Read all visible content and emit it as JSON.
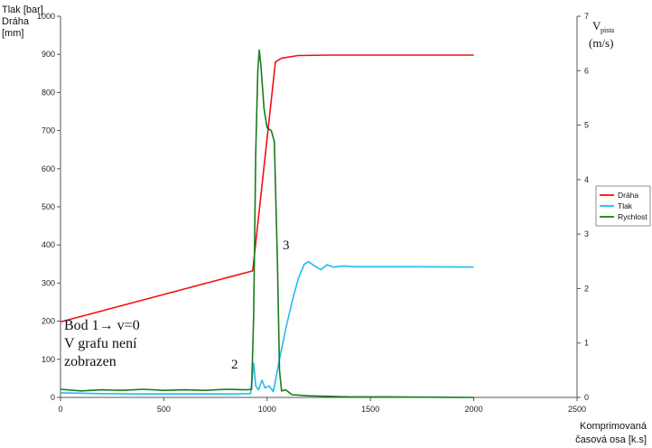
{
  "chart_data": {
    "type": "line",
    "left_axis": {
      "label_lines": [
        "Tlak [bar]",
        "Dráha",
        "[mm]"
      ],
      "ylim": [
        0,
        1000
      ],
      "ticks": [
        "0",
        "100",
        "200",
        "300",
        "400",
        "500",
        "600",
        "700",
        "800",
        "900",
        "1000"
      ]
    },
    "right_axis": {
      "label_main": "V",
      "label_sub": "pista",
      "label_unit": "(m/s)",
      "ylim": [
        0,
        7
      ],
      "ticks": [
        "0",
        "1",
        "2",
        "3",
        "4",
        "5",
        "6",
        "7"
      ]
    },
    "x_axis": {
      "label_lines": [
        "Komprimovaná",
        "časová osa [k.s]"
      ],
      "xlim": [
        0,
        2500
      ],
      "ticks": [
        "0",
        "500",
        "1000",
        "1500",
        "2000",
        "2500"
      ]
    },
    "legend": {
      "placement": "right",
      "entries": [
        "Dráha",
        "Tlak",
        "Rychlost"
      ]
    },
    "annotations": {
      "note_lines": [
        "Bod 1→ v=0",
        "V grafu není",
        "zobrazen"
      ],
      "marker2": "2",
      "marker3": "3"
    },
    "series": [
      {
        "name": "Dráha",
        "axis": "left",
        "color": "#ee1111",
        "points": [
          [
            0,
            198
          ],
          [
            930,
            332
          ],
          [
            1040,
            880
          ],
          [
            1070,
            890
          ],
          [
            1150,
            897
          ],
          [
            1300,
            898
          ],
          [
            1600,
            898
          ],
          [
            2000,
            898
          ]
        ]
      },
      {
        "name": "Tlak",
        "axis": "left",
        "color": "#22bbee",
        "points": [
          [
            0,
            12
          ],
          [
            200,
            10
          ],
          [
            400,
            9
          ],
          [
            600,
            9
          ],
          [
            800,
            9
          ],
          [
            920,
            10
          ],
          [
            935,
            90
          ],
          [
            945,
            30
          ],
          [
            958,
            20
          ],
          [
            975,
            45
          ],
          [
            990,
            25
          ],
          [
            1010,
            30
          ],
          [
            1030,
            15
          ],
          [
            1060,
            100
          ],
          [
            1090,
            180
          ],
          [
            1120,
            250
          ],
          [
            1150,
            310
          ],
          [
            1180,
            350
          ],
          [
            1200,
            356
          ],
          [
            1230,
            345
          ],
          [
            1260,
            335
          ],
          [
            1290,
            348
          ],
          [
            1320,
            342
          ],
          [
            1370,
            345
          ],
          [
            1420,
            343
          ],
          [
            1500,
            343
          ],
          [
            1700,
            343
          ],
          [
            2000,
            342
          ]
        ]
      },
      {
        "name": "Rychlost",
        "axis": "right",
        "color": "#1a7a1a",
        "points": [
          [
            0,
            0.15
          ],
          [
            100,
            0.12
          ],
          [
            200,
            0.14
          ],
          [
            300,
            0.13
          ],
          [
            400,
            0.15
          ],
          [
            500,
            0.13
          ],
          [
            600,
            0.14
          ],
          [
            700,
            0.13
          ],
          [
            800,
            0.15
          ],
          [
            900,
            0.14
          ],
          [
            925,
            0.15
          ],
          [
            935,
            1.5
          ],
          [
            945,
            4.5
          ],
          [
            955,
            6.0
          ],
          [
            962,
            6.38
          ],
          [
            970,
            6.1
          ],
          [
            985,
            5.3
          ],
          [
            1000,
            4.95
          ],
          [
            1020,
            4.9
          ],
          [
            1035,
            4.7
          ],
          [
            1050,
            2.5
          ],
          [
            1060,
            0.5
          ],
          [
            1070,
            0.12
          ],
          [
            1090,
            0.14
          ],
          [
            1120,
            0.05
          ],
          [
            1200,
            0.03
          ],
          [
            1300,
            0.02
          ],
          [
            1400,
            0.01
          ],
          [
            1600,
            0.01
          ],
          [
            2000,
            0.0
          ]
        ]
      }
    ]
  }
}
